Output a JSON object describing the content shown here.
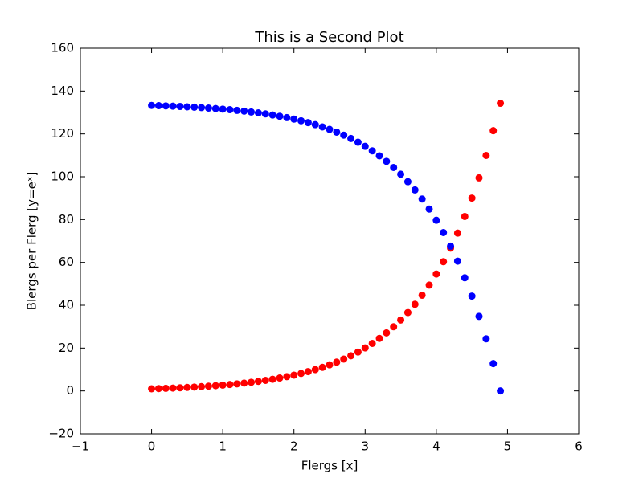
{
  "chart_data": {
    "type": "scatter",
    "title": "This is a Second Plot",
    "x_label": "Flergs [x]",
    "y_label": "Blergs per Flerg [y=eˣ]",
    "x": [
      0,
      0.1,
      0.2,
      0.3,
      0.4,
      0.5,
      0.6,
      0.7,
      0.8,
      0.9,
      1.0,
      1.1,
      1.2,
      1.3,
      1.4,
      1.5,
      1.6,
      1.7,
      1.8,
      1.9,
      2.0,
      2.1,
      2.2,
      2.3,
      2.4,
      2.5,
      2.6,
      2.7,
      2.8,
      2.9,
      3.0,
      3.1,
      3.2,
      3.3,
      3.4,
      3.5,
      3.6,
      3.7,
      3.8,
      3.9,
      4.0,
      4.1,
      4.2,
      4.3,
      4.4,
      4.5,
      4.6,
      4.7,
      4.8,
      4.9
    ],
    "series": [
      {
        "color": "#ff0000",
        "values": [
          1.0,
          1.11,
          1.22,
          1.35,
          1.49,
          1.65,
          1.82,
          2.01,
          2.23,
          2.46,
          2.72,
          3.0,
          3.32,
          3.67,
          4.06,
          4.48,
          4.95,
          5.47,
          6.05,
          6.69,
          7.39,
          8.17,
          9.03,
          9.97,
          11.02,
          12.18,
          13.46,
          14.88,
          16.44,
          18.17,
          20.09,
          22.2,
          24.53,
          27.11,
          29.96,
          33.12,
          36.6,
          40.45,
          44.7,
          49.4,
          54.6,
          60.34,
          66.69,
          73.7,
          81.45,
          90.02,
          99.48,
          109.95,
          121.51,
          134.29
        ]
      },
      {
        "color": "#0000ff",
        "values": [
          133.29,
          133.18,
          133.07,
          132.94,
          132.8,
          132.64,
          132.47,
          132.28,
          132.06,
          131.83,
          131.57,
          131.29,
          130.97,
          130.62,
          130.23,
          129.81,
          129.34,
          128.82,
          128.24,
          127.6,
          126.9,
          126.12,
          125.26,
          124.32,
          123.27,
          122.11,
          120.83,
          119.41,
          117.85,
          116.12,
          114.2,
          112.09,
          109.76,
          107.18,
          104.33,
          101.17,
          97.69,
          93.84,
          89.59,
          84.89,
          79.69,
          73.95,
          67.6,
          60.59,
          52.84,
          44.27,
          34.81,
          24.34,
          12.78,
          0.0
        ]
      }
    ],
    "xlim": [
      -1,
      6
    ],
    "ylim": [
      -20,
      160
    ],
    "xticks": [
      {
        "value": -1,
        "label": "−1"
      },
      0,
      1,
      2,
      3,
      4,
      5,
      6
    ],
    "yticks": [
      {
        "value": -20,
        "label": "−20"
      },
      0,
      20,
      40,
      60,
      80,
      100,
      120,
      140,
      160
    ]
  }
}
